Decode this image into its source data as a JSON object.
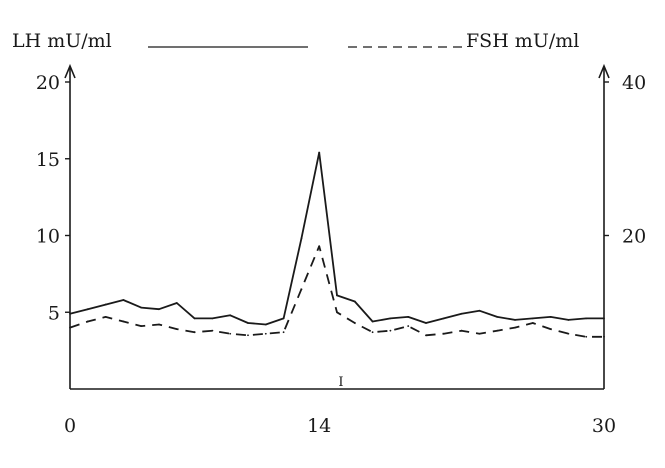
{
  "chart_data": {
    "type": "line",
    "x_ticks": [
      0,
      14,
      30
    ],
    "x_tick_labels": [
      "0",
      "14",
      "30"
    ],
    "xlim": [
      0,
      30
    ],
    "left_axis": {
      "ticks": [
        5,
        10,
        15,
        20
      ],
      "tick_labels": [
        "5",
        "10",
        "15",
        "20"
      ],
      "ylim": [
        0,
        20
      ]
    },
    "right_axis": {
      "ticks": [
        20,
        40
      ],
      "tick_labels": [
        "20",
        "40"
      ],
      "ylim": [
        0,
        40
      ]
    },
    "legend": {
      "placement": "top",
      "lh_label": "LH mU/ml",
      "fsh_label": "FSH mU/ml"
    },
    "center_marker_label": "I",
    "series": [
      {
        "name": "LH mU/ml",
        "axis": "left",
        "style": "solid",
        "color": "#1a1a1a",
        "x": [
          0,
          1,
          2,
          3,
          4,
          5,
          6,
          7,
          8,
          9,
          10,
          11,
          12,
          13,
          14,
          15,
          16,
          17,
          18,
          19,
          20,
          21,
          22,
          23,
          24,
          25,
          26,
          27,
          28,
          29,
          30
        ],
        "y": [
          4.9,
          5.2,
          5.5,
          5.8,
          5.3,
          5.2,
          5.6,
          4.6,
          4.6,
          4.8,
          4.3,
          4.2,
          4.6,
          9.8,
          15.4,
          6.1,
          5.7,
          4.4,
          4.6,
          4.7,
          4.3,
          4.6,
          4.9,
          5.1,
          4.7,
          4.5,
          4.6,
          4.7,
          4.5,
          4.6,
          4.6
        ]
      },
      {
        "name": "FSH mU/ml",
        "axis": "right",
        "style": "dashed",
        "color": "#1a1a1a",
        "x": [
          0,
          1,
          2,
          3,
          4,
          5,
          6,
          7,
          8,
          9,
          10,
          11,
          12,
          13,
          14,
          15,
          16,
          17,
          18,
          19,
          20,
          21,
          22,
          23,
          24,
          25,
          26,
          27,
          28,
          29,
          30
        ],
        "y": [
          8.0,
          8.8,
          9.4,
          8.8,
          8.2,
          8.4,
          7.8,
          7.4,
          7.6,
          7.2,
          7.0,
          7.2,
          7.4,
          13.0,
          18.6,
          10.0,
          8.6,
          7.4,
          7.6,
          8.2,
          7.0,
          7.2,
          7.6,
          7.2,
          7.6,
          8.0,
          8.6,
          7.8,
          7.2,
          6.8,
          6.8
        ]
      }
    ]
  }
}
